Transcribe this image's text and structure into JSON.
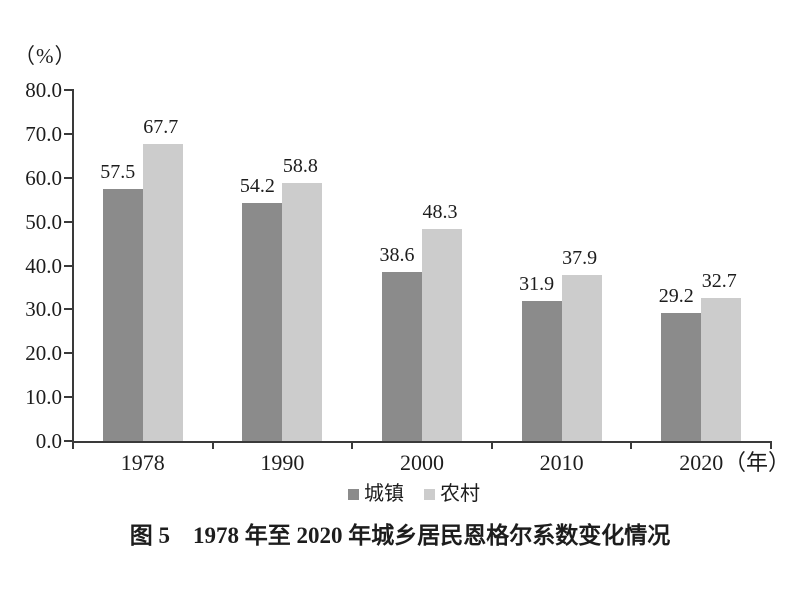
{
  "chart_data": {
    "type": "bar",
    "title": "图 5　1978 年至 2020 年城乡居民恩格尔系数变化情况",
    "y_axis_unit": "（%）",
    "x_axis_unit": "（年）",
    "categories": [
      "1978",
      "1990",
      "2000",
      "2010",
      "2020"
    ],
    "series": [
      {
        "key": "urban",
        "name": "城镇",
        "color": "#8b8b8b",
        "values": [
          57.5,
          54.2,
          38.6,
          31.9,
          29.2
        ]
      },
      {
        "key": "rural",
        "name": "农村",
        "color": "#cccccc",
        "values": [
          67.7,
          58.8,
          48.3,
          37.9,
          32.7
        ]
      }
    ],
    "value_labels": [
      "57.5",
      "54.2",
      "38.6",
      "31.9",
      "29.2",
      "67.7",
      "58.8",
      "48.3",
      "37.9",
      "32.7"
    ],
    "ylim": [
      0,
      80
    ],
    "y_tick_step": 10,
    "y_tick_labels": [
      "0.0",
      "10.0",
      "20.0",
      "30.0",
      "40.0",
      "50.0",
      "60.0",
      "70.0",
      "80.0"
    ],
    "grid": false,
    "legend_position": "bottom",
    "legend": [
      "城镇",
      "农村"
    ]
  },
  "colors": {
    "axis": "#3a3a3a",
    "text": "#1d1d1d",
    "background": "#ffffff"
  }
}
